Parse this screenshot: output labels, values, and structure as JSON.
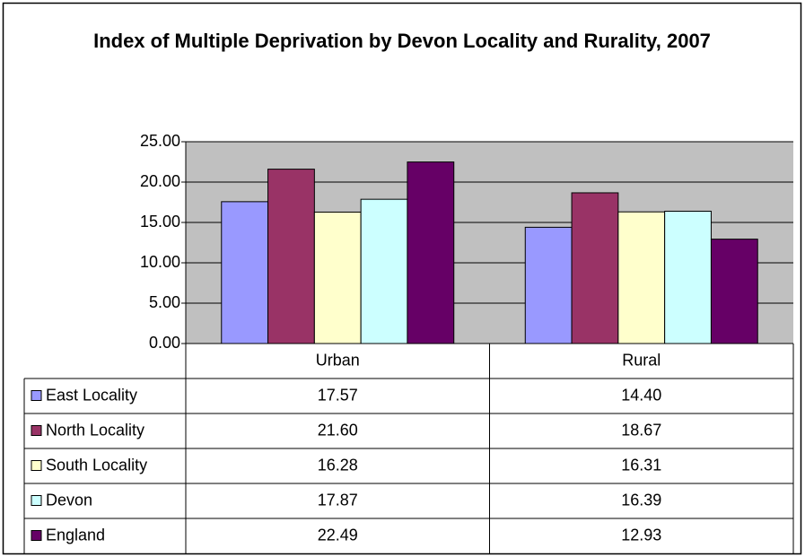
{
  "chart_data": {
    "type": "bar",
    "title": "Index of Multiple Deprivation by Devon Locality and Rurality, 2007",
    "categories": [
      "Urban",
      "Rural"
    ],
    "series": [
      {
        "name": "East Locality",
        "color": "#9999ff",
        "values": [
          17.57,
          14.4
        ],
        "value_labels": [
          "17.57",
          "14.40"
        ]
      },
      {
        "name": "North Locality",
        "color": "#993366",
        "values": [
          21.6,
          18.67
        ],
        "value_labels": [
          "21.60",
          "18.67"
        ]
      },
      {
        "name": "South Locality",
        "color": "#ffffcc",
        "values": [
          16.28,
          16.31
        ],
        "value_labels": [
          "16.28",
          "16.31"
        ]
      },
      {
        "name": "Devon",
        "color": "#ccffff",
        "values": [
          17.87,
          16.39
        ],
        "value_labels": [
          "17.87",
          "16.39"
        ]
      },
      {
        "name": "England",
        "color": "#660066",
        "values": [
          22.49,
          12.93
        ],
        "value_labels": [
          "22.49",
          "12.93"
        ]
      }
    ],
    "ylim": [
      0,
      25
    ],
    "yticks": [
      {
        "value": 0,
        "label": "0.00"
      },
      {
        "value": 5,
        "label": "5.00"
      },
      {
        "value": 10,
        "label": "10.00"
      },
      {
        "value": 15,
        "label": "15.00"
      },
      {
        "value": 20,
        "label": "20.00"
      },
      {
        "value": 25,
        "label": "25.00"
      }
    ],
    "grid": true
  }
}
